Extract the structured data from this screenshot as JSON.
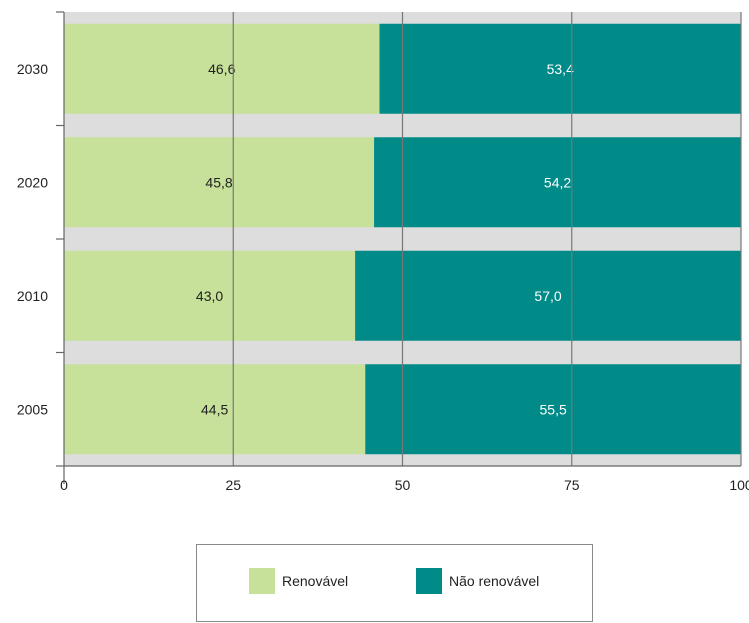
{
  "chart_data": {
    "type": "bar",
    "orientation": "horizontal",
    "stacked": true,
    "categories": [
      "2030",
      "2020",
      "2010",
      "2005"
    ],
    "series": [
      {
        "name": "Renovável",
        "values": [
          46.6,
          45.8,
          43.0,
          44.5
        ],
        "labels": [
          "46,6",
          "45,8",
          "43,0",
          "44,5"
        ]
      },
      {
        "name": "Não renovável",
        "values": [
          53.4,
          54.2,
          57.0,
          55.5
        ],
        "labels": [
          "53,4",
          "54,2",
          "57,0",
          "55,5"
        ]
      }
    ],
    "xlim": [
      0,
      100
    ],
    "xticks": [
      0,
      25,
      50,
      75,
      100
    ],
    "xtick_labels": [
      "0",
      "25",
      "50",
      "75",
      "100"
    ],
    "grid": true,
    "legend_position": "bottom",
    "colors": {
      "renovavel": "#c7e19a",
      "nao_renovavel": "#008b88",
      "row_background": "#dddddd",
      "gridline": "#777777"
    }
  },
  "legend": {
    "items": [
      {
        "label": "Renovável",
        "color": "#c7e19a"
      },
      {
        "label": "Não renovável",
        "color": "#008b88"
      }
    ]
  }
}
